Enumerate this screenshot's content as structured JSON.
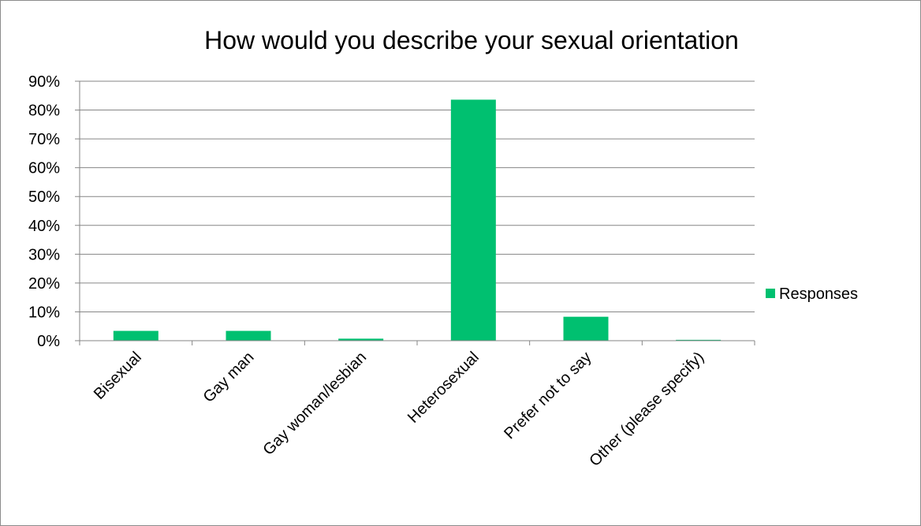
{
  "chart_data": {
    "type": "bar",
    "title": "How would you describe your sexual orientation",
    "categories": [
      "Bisexual",
      "Gay man",
      "Gay woman/lesbian",
      "Heterosexual",
      "Prefer not to say",
      "Other (please specify)"
    ],
    "series": [
      {
        "name": "Responses",
        "values": [
          3.4,
          3.4,
          0.7,
          83.6,
          8.3,
          0.3
        ],
        "color": "#00c070"
      }
    ],
    "yticks": [
      "0%",
      "10%",
      "20%",
      "30%",
      "40%",
      "50%",
      "60%",
      "70%",
      "80%",
      "90%"
    ],
    "ylim": [
      0,
      90
    ],
    "grid": true,
    "legend_position": "right"
  }
}
